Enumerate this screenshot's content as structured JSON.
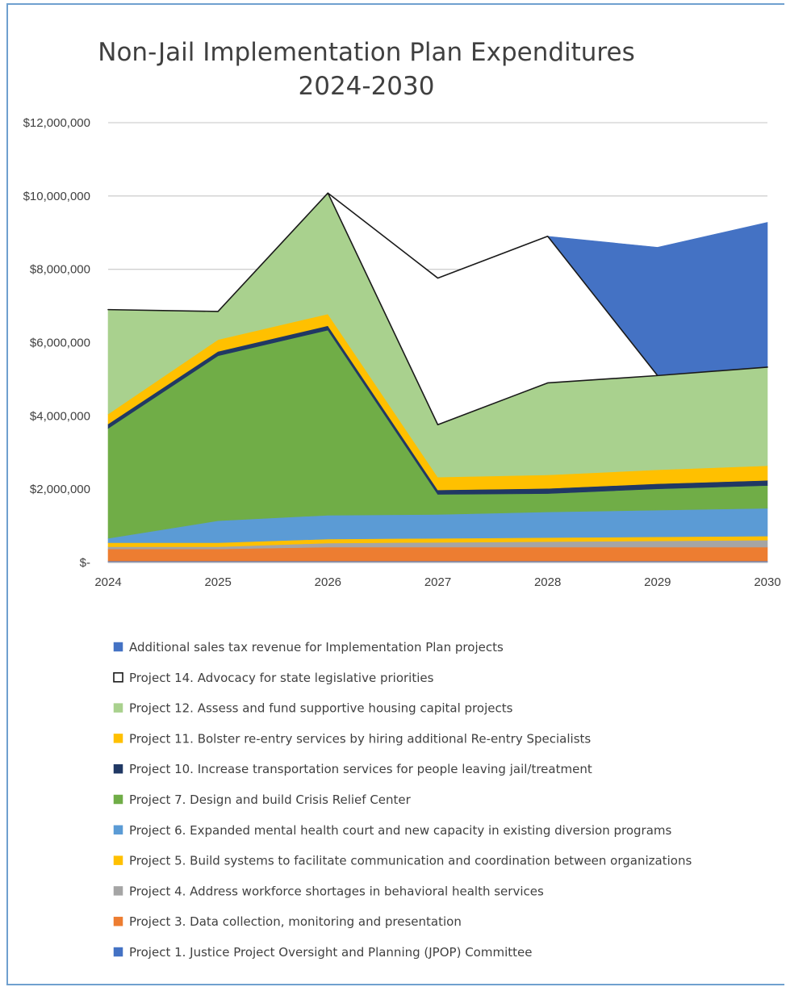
{
  "chart_data": {
    "type": "area",
    "stacked": true,
    "title_lines": [
      "Non-Jail Implementation Plan Expenditures",
      "2024-2030"
    ],
    "x": [
      "2024",
      "2025",
      "2026",
      "2027",
      "2028",
      "2029",
      "2030"
    ],
    "ylim": [
      0,
      12000000
    ],
    "yticks": [
      {
        "value": 0,
        "label": "$-"
      },
      {
        "value": 2000000,
        "label": "$2,000,000"
      },
      {
        "value": 4000000,
        "label": "$4,000,000"
      },
      {
        "value": 6000000,
        "label": "$6,000,000"
      },
      {
        "value": 8000000,
        "label": "$8,000,000"
      },
      {
        "value": 10000000,
        "label": "$10,000,000"
      },
      {
        "value": 12000000,
        "label": "$12,000,000"
      }
    ],
    "grid": true,
    "legend_position": "bottom",
    "series": [
      {
        "name": "Project 1. Justice Project Oversight and Planning (JPOP) Committee",
        "color": "#4472c4",
        "values": [
          40000,
          40000,
          40000,
          40000,
          40000,
          40000,
          40000
        ]
      },
      {
        "name": "Project 3. Data collection, monitoring and presentation",
        "color": "#ed7d31",
        "values": [
          330000,
          330000,
          380000,
          380000,
          380000,
          380000,
          380000
        ]
      },
      {
        "name": "Project 4. Address workforce shortages in behavioral health services",
        "color": "#a5a5a5",
        "values": [
          60000,
          60000,
          110000,
          130000,
          150000,
          170000,
          190000
        ]
      },
      {
        "name": "Project 5. Build systems to facilitate communication and coordination between organizations",
        "color": "#ffc000",
        "values": [
          110000,
          110000,
          110000,
          110000,
          110000,
          110000,
          110000
        ]
      },
      {
        "name": "Project 6. Expanded mental health court and new capacity in existing diversion programs",
        "color": "#5b9bd5",
        "values": [
          120000,
          600000,
          650000,
          650000,
          700000,
          730000,
          760000
        ]
      },
      {
        "name": "Project 7. Design and build Crisis Relief Center",
        "color": "#70ad47",
        "values": [
          3000000,
          4500000,
          5050000,
          550000,
          500000,
          580000,
          620000
        ]
      },
      {
        "name": "Project 10. Increase transportation services for people leaving jail/treatment",
        "color": "#203864",
        "values": [
          120000,
          120000,
          120000,
          120000,
          140000,
          140000,
          140000
        ]
      },
      {
        "name": "Project 11. Bolster re-entry services by hiring additional Re-entry Specialists",
        "color": "#ffc000",
        "values": [
          270000,
          320000,
          320000,
          350000,
          370000,
          380000,
          400000
        ]
      },
      {
        "name": "Project 12. Assess and fund supportive housing capital projects",
        "color": "#a9d18e",
        "values": [
          2850000,
          770000,
          3300000,
          1430000,
          2510000,
          2570000,
          2690000
        ]
      },
      {
        "name": "Project 14. Advocacy for state legislative priorities",
        "color": "#ffffff",
        "values": [
          0,
          0,
          0,
          4000000,
          4000000,
          0,
          0
        ]
      },
      {
        "name": "Additional sales tax revenue for Implementation Plan projects",
        "color": "#4472c4",
        "values": [
          0,
          0,
          0,
          0,
          0,
          3500000,
          3950000
        ]
      }
    ],
    "legend_order": [
      10,
      9,
      8,
      7,
      6,
      5,
      4,
      3,
      2,
      1,
      0
    ]
  }
}
